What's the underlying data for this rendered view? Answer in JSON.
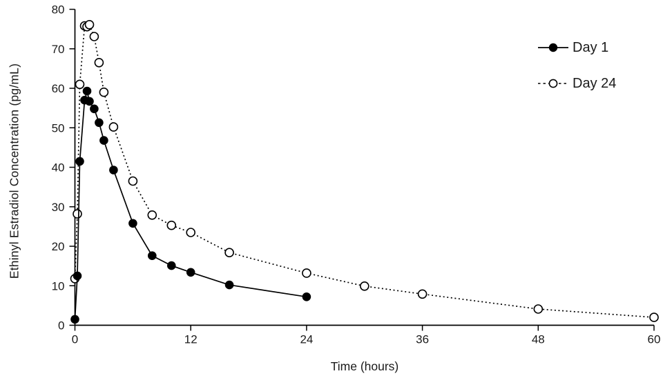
{
  "figure": {
    "background": "#ffffff",
    "axis_color": "#000000",
    "text_color": "#1a1a1a"
  },
  "chart_data": {
    "type": "line",
    "title": "",
    "xlabel": "Time (hours)",
    "ylabel": "Ethinyl Estradiol Concentration (pg/mL)",
    "xlim": [
      0,
      60
    ],
    "ylim": [
      0,
      80
    ],
    "xticks": [
      0,
      12,
      24,
      36,
      48,
      60
    ],
    "yticks": [
      0,
      10,
      20,
      30,
      40,
      50,
      60,
      70,
      80
    ],
    "grid": false,
    "legend_position": "top-right",
    "series": [
      {
        "name": "Day 1",
        "marker": "filled-circle",
        "line_style": "solid",
        "color": "#000000",
        "x": [
          0,
          0.25,
          0.5,
          1,
          1.25,
          1.5,
          2,
          2.5,
          3,
          4,
          6,
          8,
          10,
          12,
          16,
          24
        ],
        "y": [
          1.5,
          12.5,
          41.5,
          57.0,
          59.3,
          56.7,
          54.8,
          51.3,
          46.8,
          39.3,
          25.8,
          17.6,
          15.1,
          13.4,
          10.2,
          7.2
        ]
      },
      {
        "name": "Day 24",
        "marker": "open-circle",
        "line_style": "dotted",
        "color": "#000000",
        "x": [
          0,
          0.25,
          0.5,
          1,
          1.25,
          1.5,
          2,
          2.5,
          3,
          4,
          6,
          8,
          10,
          12,
          16,
          24,
          30,
          36,
          48,
          60
        ],
        "y": [
          11.8,
          28.2,
          61.0,
          75.8,
          75.6,
          76.1,
          73.1,
          66.5,
          59.0,
          50.2,
          36.5,
          27.9,
          25.3,
          23.5,
          18.4,
          13.2,
          9.9,
          7.9,
          4.1,
          2.0
        ]
      }
    ]
  }
}
